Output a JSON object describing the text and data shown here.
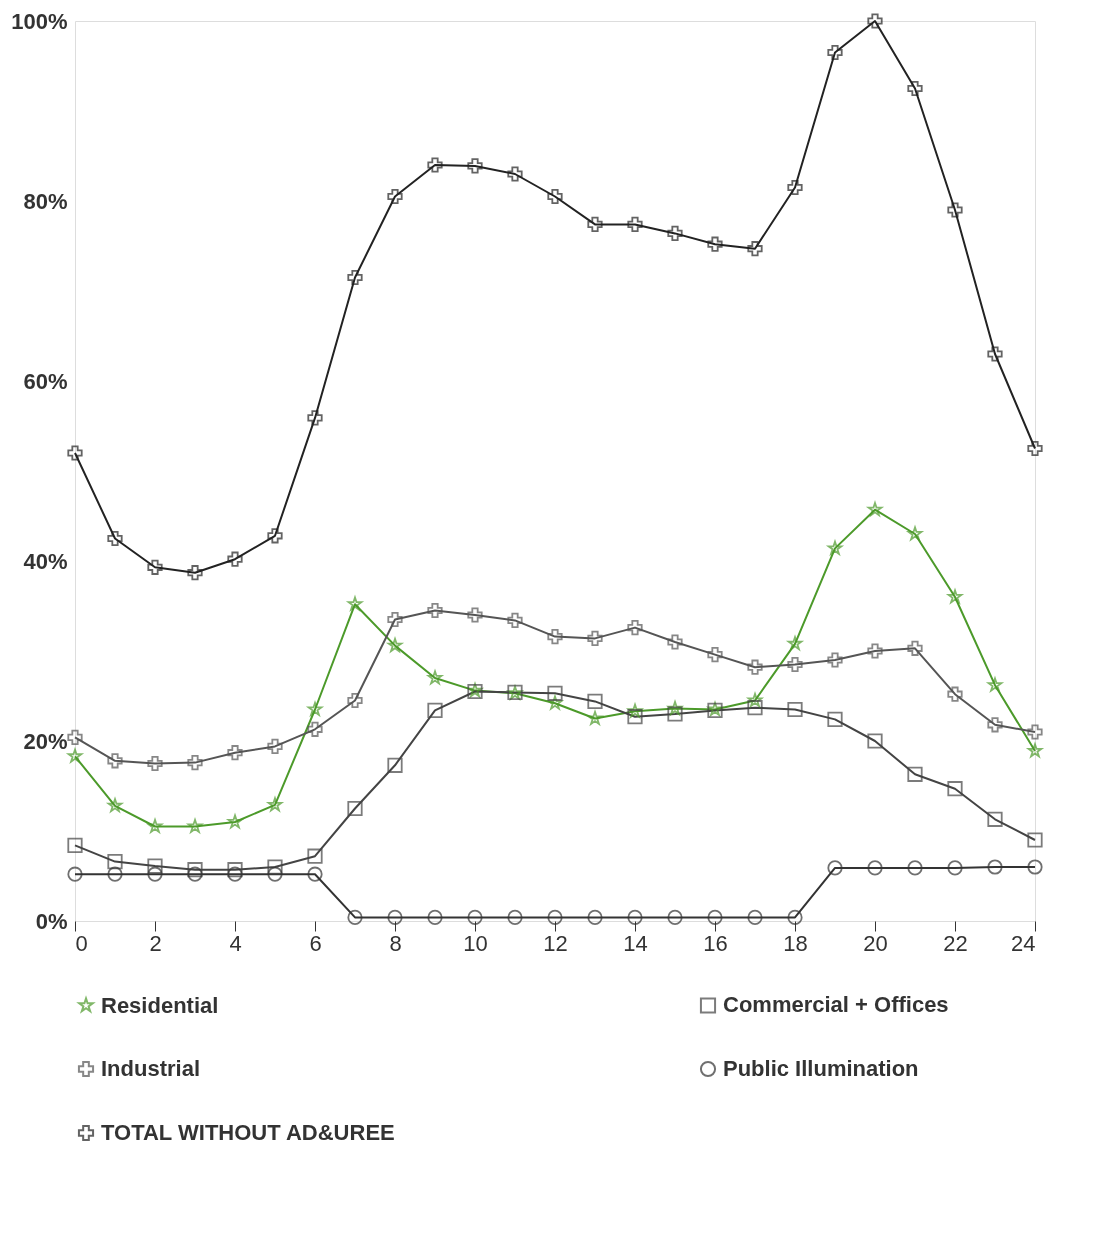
{
  "chart_data": {
    "type": "line",
    "x": [
      0,
      1,
      2,
      3,
      4,
      5,
      6,
      7,
      8,
      9,
      10,
      11,
      12,
      13,
      14,
      15,
      16,
      17,
      18,
      19,
      20,
      21,
      22,
      23,
      24
    ],
    "xlim": [
      0,
      24
    ],
    "xticks": [
      0,
      2,
      4,
      6,
      8,
      10,
      12,
      14,
      16,
      18,
      20,
      22,
      24
    ],
    "ylim": [
      0,
      100
    ],
    "yticks": [
      {
        "value": 0,
        "label": "0%"
      },
      {
        "value": 20,
        "label": "20%"
      },
      {
        "value": 40,
        "label": "40%"
      },
      {
        "value": 60,
        "label": "60%"
      },
      {
        "value": 80,
        "label": "80%"
      },
      {
        "value": 100,
        "label": "100%"
      }
    ],
    "grid": false,
    "legend": "bottom",
    "series": [
      {
        "name": "Residential",
        "color": "#4c9a2a",
        "marker": "star",
        "values": [
          18.3,
          12.8,
          10.5,
          10.5,
          11,
          12.9,
          23.5,
          35.2,
          30.6,
          27,
          25.6,
          25.3,
          24.2,
          22.5,
          23.3,
          23.6,
          23.5,
          24.5,
          30.8,
          41.4,
          45.7,
          43,
          36,
          26.2,
          18.9
        ]
      },
      {
        "name": "Commercial + Offices",
        "color": "#444444",
        "marker": "square",
        "values": [
          8.4,
          6.6,
          6.1,
          5.7,
          5.7,
          6,
          7.2,
          12.5,
          17.3,
          23.4,
          25.5,
          25.4,
          25.3,
          24.4,
          22.7,
          23,
          23.4,
          23.7,
          23.5,
          22.4,
          20,
          16.3,
          14.7,
          11.3,
          9
        ]
      },
      {
        "name": "Industrial",
        "color": "#555555",
        "marker": "cross",
        "values": [
          20.4,
          17.8,
          17.5,
          17.6,
          18.7,
          19.4,
          21.3,
          24.5,
          33.5,
          34.5,
          34,
          33.4,
          31.6,
          31.4,
          32.6,
          31,
          29.6,
          28.2,
          28.5,
          29,
          30,
          30.3,
          25.2,
          21.8,
          21
        ]
      },
      {
        "name": "Public Illumination",
        "color": "#333333",
        "marker": "circle",
        "values": [
          5.2,
          5.2,
          5.2,
          5.2,
          5.2,
          5.2,
          5.2,
          0.4,
          0.4,
          0.4,
          0.4,
          0.4,
          0.4,
          0.4,
          0.4,
          0.4,
          0.4,
          0.4,
          0.4,
          5.9,
          5.9,
          5.9,
          5.9,
          6,
          6
        ]
      },
      {
        "name": "TOTAL WITHOUT AD&UREE",
        "color": "#222222",
        "marker": "cross",
        "values": [
          52,
          42.5,
          39.3,
          38.7,
          40.2,
          42.8,
          55.9,
          71.5,
          80.5,
          84,
          83.9,
          83,
          80.5,
          77.4,
          77.4,
          76.4,
          75.2,
          74.7,
          81.5,
          96.5,
          100,
          92.5,
          79,
          63,
          52.5
        ]
      }
    ]
  }
}
